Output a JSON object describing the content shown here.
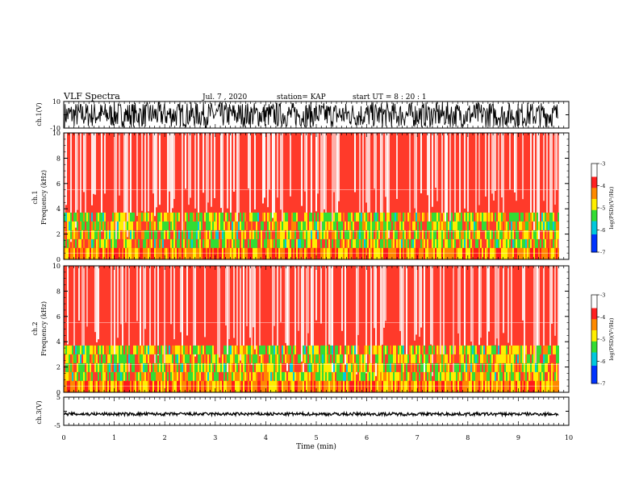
{
  "header": {
    "title": "VLF Spectra",
    "date": "Jul. 7 , 2020",
    "station": "station= KAP",
    "start": "start UT = 8 : 20 : 1"
  },
  "chart_data": [
    {
      "type": "line",
      "panel": "ch1-waveform",
      "ylabel": "ch.1(V)",
      "ylim": [
        -10,
        10
      ],
      "yticks": [
        "10",
        "-10"
      ],
      "xlim": [
        0,
        10
      ],
      "color": "#000000",
      "description_values": "dense noisy waveform saturating near +/-10 V from 0 to 9.8 min"
    },
    {
      "type": "heatmap",
      "panel": "ch1-spectrogram",
      "ylabel": "ch.1\nFrequency (kHz)",
      "ylim": [
        0,
        10
      ],
      "yticks": [
        "0",
        "2",
        "4",
        "6",
        "8",
        "10"
      ],
      "xlim": [
        0,
        10
      ],
      "data_end_x": 9.8,
      "colorbar": {
        "label": "log(PSD)(V²/Hz)",
        "range": [
          -7,
          -3
        ],
        "ticks": [
          "-3",
          "-4",
          "-5",
          "-6",
          "-7"
        ]
      }
    },
    {
      "type": "heatmap",
      "panel": "ch2-spectrogram",
      "ylabel": "ch.2\nFrequency (kHz)",
      "ylim": [
        0,
        10
      ],
      "yticks": [
        "0",
        "2",
        "4",
        "6",
        "8",
        "10"
      ],
      "xlim": [
        0,
        10
      ],
      "data_end_x": 9.8,
      "colorbar": {
        "label": "log(PSD)(V²/Hz)",
        "range": [
          -7,
          -3
        ],
        "ticks": [
          "-3",
          "-4",
          "-5",
          "-6",
          "-7"
        ]
      }
    },
    {
      "type": "line",
      "panel": "ch3-waveform",
      "ylabel": "ch.3(V)",
      "ylim": [
        -5,
        5
      ],
      "yticks": [
        "5",
        "-5"
      ],
      "xlim": [
        0,
        10
      ],
      "level": -1,
      "color": "#000000"
    }
  ],
  "xaxis": {
    "label": "Time (min)",
    "ticks": [
      "0",
      "1",
      "2",
      "3",
      "4",
      "5",
      "6",
      "7",
      "8",
      "9",
      "10"
    ]
  },
  "ch1_ylabel_top": "ch.1",
  "ch1_ylabel_bottom": "Frequency (kHz)",
  "ch2_ylabel_top": "ch.2",
  "ch2_ylabel_bottom": "Frequency (kHz)",
  "colormap": [
    "#ffffff",
    "#ff1a1a",
    "#ff8800",
    "#ffee00",
    "#33dd33",
    "#00ccdd",
    "#0033ff",
    "#000066"
  ]
}
